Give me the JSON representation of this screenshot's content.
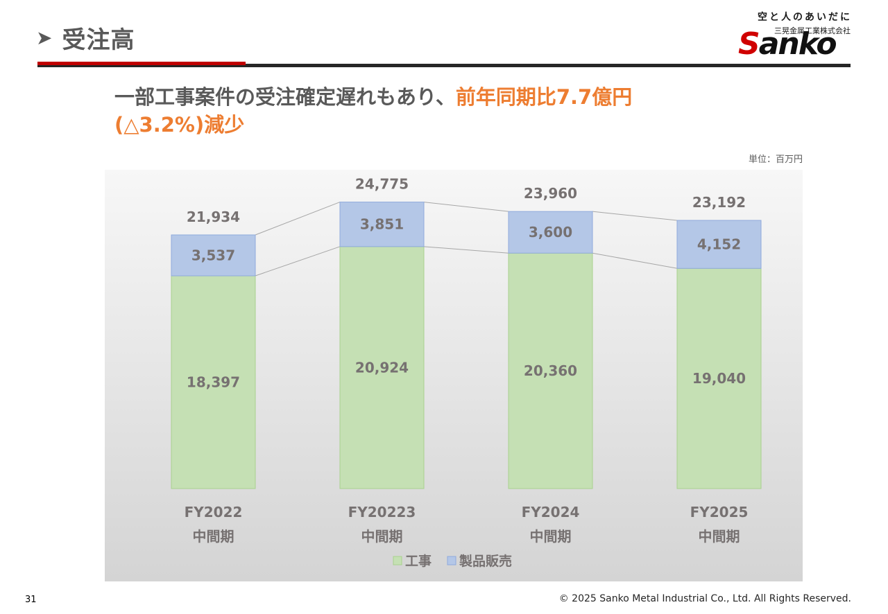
{
  "page": {
    "title": "受注高",
    "headline_main": "一部工事案件の受注確定遅れもあり、",
    "headline_accent": "前年同期比7.7億円",
    "headline_line2": "(△3.2%)減少",
    "unit_note": "単位：百万円",
    "page_number": "31",
    "copyright": "© 2025 Sanko Metal Industrial Co., Ltd. All Rights Reserved."
  },
  "logo": {
    "tagline": "空と人のあいだに",
    "company": "三晃金属工業株式会社",
    "brand_first": "S",
    "brand_rest": "anko"
  },
  "colors": {
    "accent": "#ed7d31",
    "construction": "#c5e0b4",
    "construction_border": "#a9d18e",
    "product_sales": "#b4c7e7",
    "product_sales_border": "#8faadc",
    "label": "#767171",
    "connector": "#a6a6a6"
  },
  "chart_data": {
    "type": "bar",
    "stacked": true,
    "categories": [
      [
        "FY2022",
        "中間期"
      ],
      [
        "FY20223",
        "中間期"
      ],
      [
        "FY2024",
        "中間期"
      ],
      [
        "FY2025",
        "中間期"
      ]
    ],
    "series": [
      {
        "name": "工事",
        "values": [
          18397,
          20924,
          20360,
          19040
        ]
      },
      {
        "name": "製品販売",
        "values": [
          3537,
          3851,
          3600,
          4152
        ]
      }
    ],
    "totals": [
      21934,
      24775,
      23960,
      23192
    ],
    "value_labels": {
      "series": [
        [
          "18,397",
          "20,924",
          "20,360",
          "19,040"
        ],
        [
          "3,537",
          "3,851",
          "3,600",
          "4,152"
        ]
      ],
      "totals": [
        "21,934",
        "24,775",
        "23,960",
        "23,192"
      ]
    },
    "series_lines": true,
    "legend": "bottom",
    "grid": false,
    "background": "gradient"
  }
}
